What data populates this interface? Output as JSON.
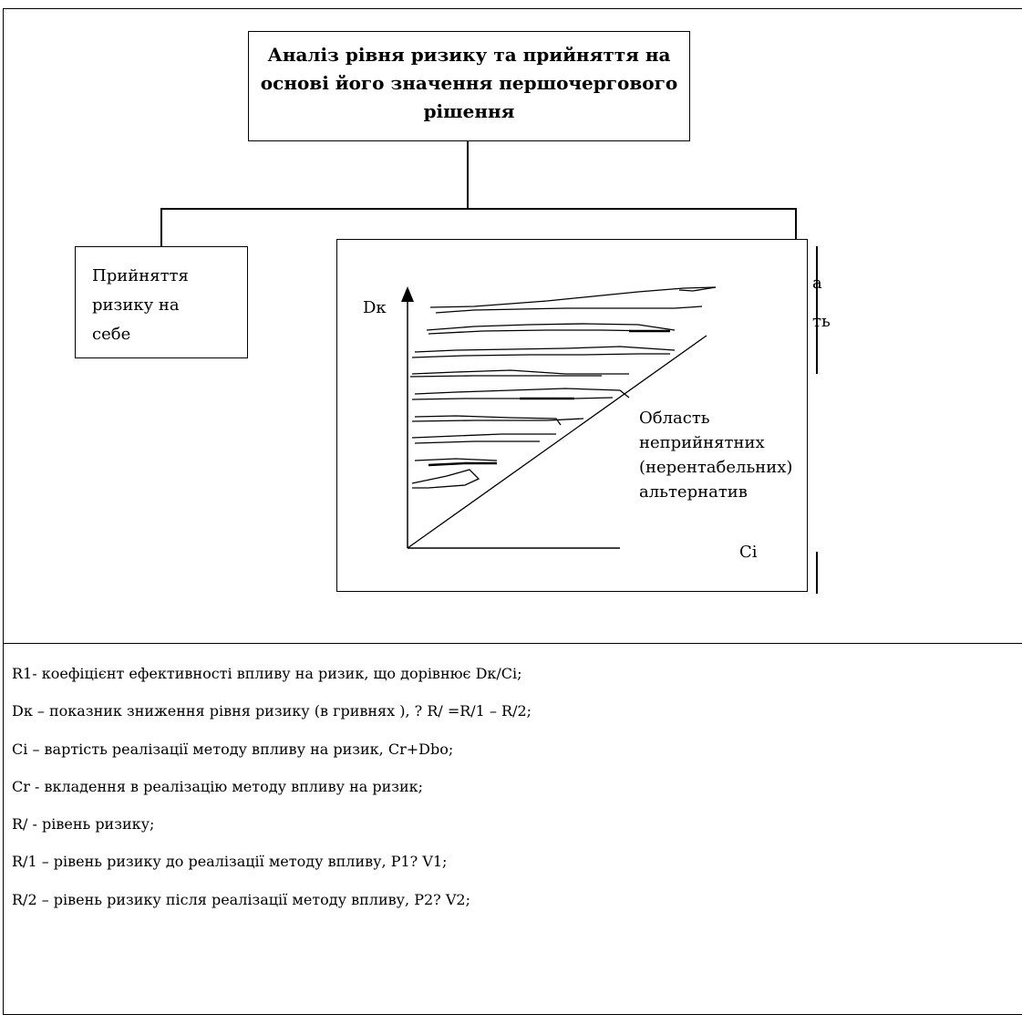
{
  "diagram": {
    "title": "Аналіз рівня ризику та прийняття на основі його значення першочергового рішення",
    "title_lines": [
      "Аналіз рівня ризику та прийняття на",
      "основі його значення першочергового",
      "рішення"
    ],
    "left_branch": {
      "lines": [
        "Прийняття",
        "ризику на",
        "себе"
      ]
    },
    "right_branch": {
      "clipped_text_fragments": [
        "а",
        "ть"
      ]
    },
    "chart": {
      "y_axis_label": "Dк",
      "x_axis_label": "Ci",
      "region_label_lines": [
        "Область",
        "неприйнятних",
        "(нерентабельних)",
        "альтернатив"
      ]
    }
  },
  "legend": [
    "R1- коефіцієнт ефективності впливу на ризик, що дорівнює Dк/Ci;",
    "Dк – показник зниження рівня ризику (в гривнях ), ? R/ =R/1 – R/2;",
    "Ci – вартість реалізації методу впливу на ризик, Cr+Dbo;",
    "Cr  - вкладення в реалізацію методу впливу на ризик;",
    "R/  - рівень ризику;",
    "R/1 – рівень ризику до реалізації методу впливу, P1? V1;",
    "R/2 – рівень ризику після реалізації методу впливу, P2? V2;"
  ]
}
